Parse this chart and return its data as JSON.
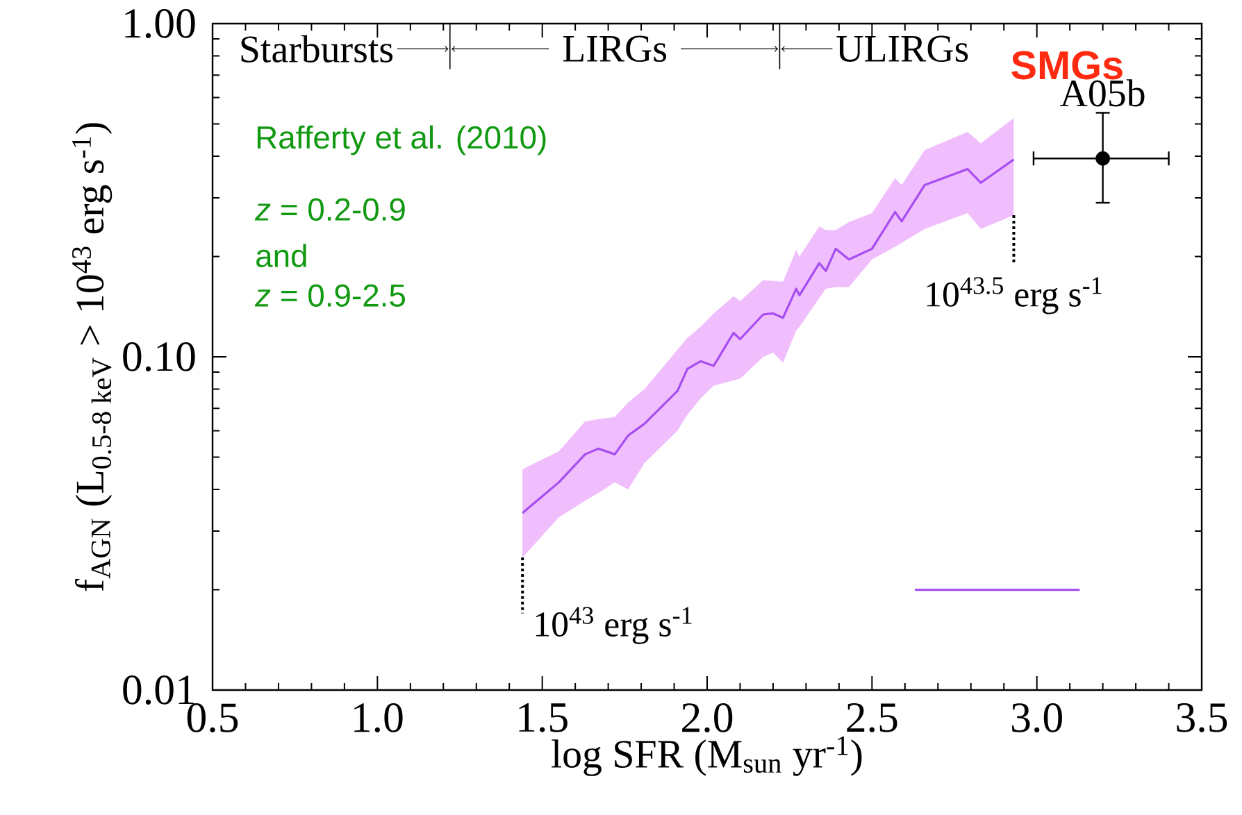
{
  "chart_data": {
    "type": "line",
    "xlabel": "log SFR (M$_{sun}$ yr$^{-1}$)",
    "ylabel": "f$_{AGN}$ (L$_{0.5-8 keV}$ > 10$^{43}$ erg s$^{-1}$)",
    "log": "y",
    "xlim": [
      0.5,
      3.5
    ],
    "ylim": [
      0.01,
      1.0
    ],
    "xticks": [
      0.5,
      {
        "value": 1,
        "label": "1.0"
      },
      1.5,
      {
        "value": 2,
        "label": "2.0"
      },
      2.5,
      {
        "value": 3,
        "label": "3.0"
      },
      3.5
    ],
    "yticks": [
      {
        "value": 0.01,
        "label": "0.01"
      },
      {
        "value": 0.1,
        "label": "0.10"
      },
      {
        "value": 1,
        "label": "1.00"
      }
    ],
    "grid": false,
    "series": [
      {
        "color": "#a64df2",
        "line_style": "solid",
        "x": [
          1.44,
          1.55,
          1.63,
          1.67,
          1.72,
          1.76,
          1.81,
          1.91,
          1.94,
          1.98,
          2.02,
          2.08,
          2.1,
          2.17,
          2.2,
          2.23,
          2.27,
          2.28,
          2.34,
          2.36,
          2.39,
          2.43,
          2.5,
          2.57,
          2.59,
          2.66,
          2.79,
          2.83,
          2.93
        ],
        "values": [
          0.034,
          0.042,
          0.051,
          0.053,
          0.051,
          0.058,
          0.063,
          0.079,
          0.092,
          0.097,
          0.094,
          0.118,
          0.113,
          0.134,
          0.135,
          0.131,
          0.16,
          0.153,
          0.191,
          0.181,
          0.211,
          0.196,
          0.211,
          0.272,
          0.255,
          0.328,
          0.366,
          0.333,
          0.391
        ],
        "lower": [
          0.025,
          0.033,
          0.037,
          0.039,
          0.042,
          0.04,
          0.048,
          0.06,
          0.067,
          0.075,
          0.082,
          0.085,
          0.086,
          0.1,
          0.103,
          0.096,
          0.12,
          0.123,
          0.15,
          0.16,
          0.162,
          0.162,
          0.196,
          0.214,
          0.22,
          0.242,
          0.27,
          0.242,
          0.266
        ],
        "upper": [
          0.046,
          0.052,
          0.064,
          0.065,
          0.066,
          0.073,
          0.08,
          0.105,
          0.114,
          0.123,
          0.135,
          0.152,
          0.147,
          0.17,
          0.169,
          0.168,
          0.209,
          0.2,
          0.246,
          0.24,
          0.24,
          0.254,
          0.27,
          0.344,
          0.328,
          0.417,
          0.473,
          0.437,
          0.521
        ]
      },
      {
        "color": "#000000",
        "line_style": "dotted",
        "x": [
          1.44,
          1.44
        ],
        "values": [
          0.025,
          0.017
        ]
      },
      {
        "color": "#000000",
        "line_style": "dotted",
        "x": [
          2.93,
          2.93
        ],
        "values": [
          0.266,
          0.19
        ]
      },
      {
        "color": "#000000",
        "line_style": "solid",
        "x": [
          1.22,
          1.22
        ],
        "values": [
          1.0,
          0.73
        ]
      },
      {
        "color": "#000000",
        "line_style": "solid",
        "x": [
          2.22,
          2.22
        ],
        "values": [
          1.0,
          0.73
        ]
      },
      {
        "type": "scatter",
        "color": "#000000",
        "marker": "circle",
        "x": [
          3.2
        ],
        "values": [
          0.394
        ],
        "errors": [
          [
            0.29,
            0.54
          ]
        ],
        "xerrors": [
          [
            2.99,
            3.4
          ]
        ]
      },
      {
        "color": "#a64df2",
        "line_style": "solid",
        "x": [
          2.63,
          3.13
        ],
        "values": [
          0.02,
          0.02
        ]
      }
    ],
    "annotations": [
      "Rafferty et al. (2010)",
      "*z* = 0.2-0.9",
      "and",
      "*z* = 0.9-2.5",
      "SMGs",
      {
        "text": "Starbursts",
        "x": 1.22,
        "y": 0.84
      },
      {
        "text": "LIRGs",
        "x": 1.22,
        "y": 0.84
      },
      {
        "text": "ULIRGs",
        "x": 2.22,
        "y": 0.84
      },
      {
        "text": "10$^{43}$ erg s$^{-1}$",
        "x": 1.44,
        "y": 0.017
      },
      {
        "text": "10$^{43.5}$ erg s$^{-1}$",
        "x": 2.93,
        "y": 0.19
      },
      {
        "text": "A05b",
        "x": 3.2,
        "y": 0.54
      }
    ]
  }
}
